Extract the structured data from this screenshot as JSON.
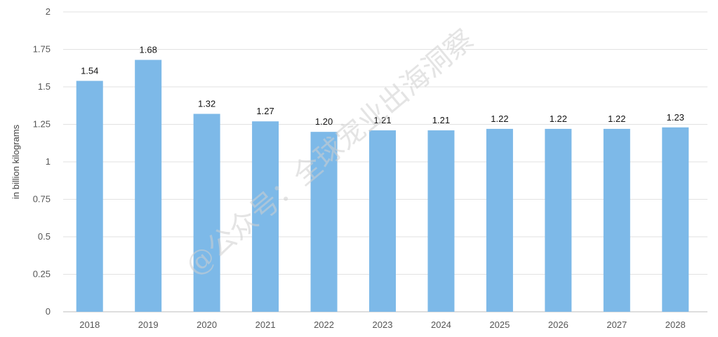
{
  "chart_data": {
    "type": "bar",
    "categories": [
      "2018",
      "2019",
      "2020",
      "2021",
      "2022",
      "2023",
      "2024",
      "2025",
      "2026",
      "2027",
      "2028"
    ],
    "values": [
      1.54,
      1.68,
      1.32,
      1.27,
      1.2,
      1.21,
      1.21,
      1.22,
      1.22,
      1.22,
      1.23
    ],
    "data_labels": [
      "1.54",
      "1.68",
      "1.32",
      "1.27",
      "1.20",
      "1.21",
      "1.21",
      "1.22",
      "1.22",
      "1.22",
      "1.23"
    ],
    "title": "",
    "xlabel": "",
    "ylabel": "in billion kilograms",
    "ylim": [
      0,
      2
    ],
    "yticks": [
      "0",
      "0.25",
      "0.5",
      "0.75",
      "1",
      "1.25",
      "1.5",
      "1.75",
      "2"
    ],
    "grid": true,
    "bar_color": "#7db9e8"
  },
  "watermark": "@公众号：全球宠业出海洞察"
}
